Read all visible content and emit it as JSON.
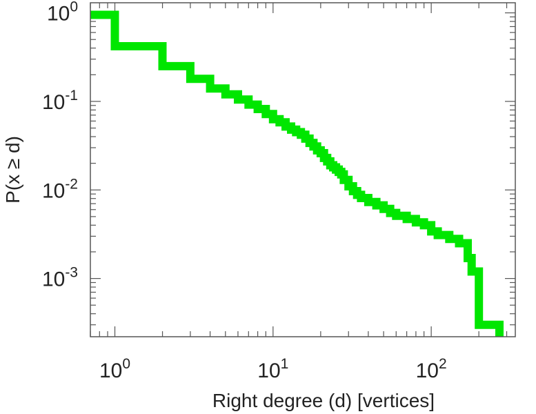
{
  "chart_data": {
    "type": "line",
    "style": "step",
    "xscale": "log",
    "yscale": "log",
    "xlabel": "Right degree (d) [vertices]",
    "ylabel": "P(x ≥ d)",
    "xlim": [
      0.7,
      340
    ],
    "ylim": [
      0.00022,
      1.3
    ],
    "grid": false,
    "legend": "none",
    "line_color": "#00e600",
    "x_ticks": [
      {
        "value": 1,
        "base": "10",
        "exp": "0"
      },
      {
        "value": 10,
        "base": "10",
        "exp": "1"
      },
      {
        "value": 100,
        "base": "10",
        "exp": "2"
      }
    ],
    "y_ticks": [
      {
        "value": 1,
        "base": "10",
        "exp": "0"
      },
      {
        "value": 0.1,
        "base": "10",
        "exp": "-1"
      },
      {
        "value": 0.01,
        "base": "10",
        "exp": "-2"
      },
      {
        "value": 0.001,
        "base": "10",
        "exp": "-3"
      }
    ],
    "series": [
      {
        "x": [
          0.7,
          1,
          2,
          3,
          4,
          5,
          6,
          7,
          8,
          9,
          10,
          11,
          12,
          13,
          14,
          15,
          16,
          17,
          18,
          19,
          20,
          21,
          22,
          23,
          24,
          25,
          26,
          27,
          28,
          30,
          32,
          34,
          36,
          40,
          45,
          50,
          55,
          60,
          70,
          80,
          90,
          100,
          110,
          130,
          150,
          170,
          180,
          200,
          270
        ],
        "y": [
          0.95,
          0.42,
          0.25,
          0.18,
          0.14,
          0.12,
          0.105,
          0.092,
          0.082,
          0.072,
          0.063,
          0.058,
          0.052,
          0.048,
          0.045,
          0.042,
          0.038,
          0.034,
          0.031,
          0.028,
          0.026,
          0.023,
          0.021,
          0.019,
          0.018,
          0.017,
          0.016,
          0.015,
          0.013,
          0.011,
          0.0097,
          0.0088,
          0.0081,
          0.0073,
          0.0067,
          0.0061,
          0.0055,
          0.0051,
          0.0047,
          0.0043,
          0.004,
          0.0034,
          0.0031,
          0.0028,
          0.0025,
          0.0017,
          0.0012,
          0.0003,
          0.00022
        ]
      }
    ]
  }
}
